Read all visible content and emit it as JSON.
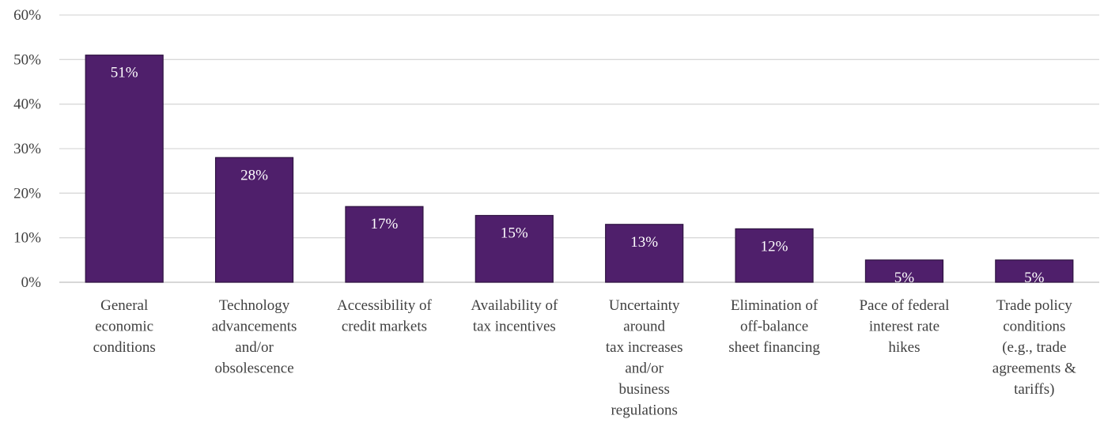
{
  "chart_data": {
    "type": "bar",
    "categories": [
      [
        "General",
        "economic",
        "conditions"
      ],
      [
        "Technology",
        "advancements",
        "and/or",
        "obsolescence"
      ],
      [
        "Accessibility of",
        "credit markets"
      ],
      [
        "Availability of",
        "tax incentives"
      ],
      [
        "Uncertainty",
        "around",
        "tax increases",
        "and/or",
        "business",
        "regulations"
      ],
      [
        "Elimination of",
        "off-balance",
        "sheet financing"
      ],
      [
        "Pace of federal",
        "interest rate",
        "hikes"
      ],
      [
        "Trade policy",
        "conditions",
        "(e.g., trade",
        "agreements &",
        "tariffs)"
      ]
    ],
    "values": [
      51,
      28,
      17,
      15,
      13,
      12,
      5,
      5
    ],
    "data_labels": [
      "51%",
      "28%",
      "17%",
      "15%",
      "13%",
      "12%",
      "5%",
      "5%"
    ],
    "ylim": [
      0,
      60
    ],
    "yticks": [
      0,
      10,
      20,
      30,
      40,
      50,
      60
    ],
    "ytick_labels": [
      "0%",
      "10%",
      "20%",
      "30%",
      "40%",
      "50%",
      "60%"
    ],
    "grid": true,
    "bar_color": "#4f1f6b",
    "title": "",
    "xlabel": "",
    "ylabel": ""
  }
}
